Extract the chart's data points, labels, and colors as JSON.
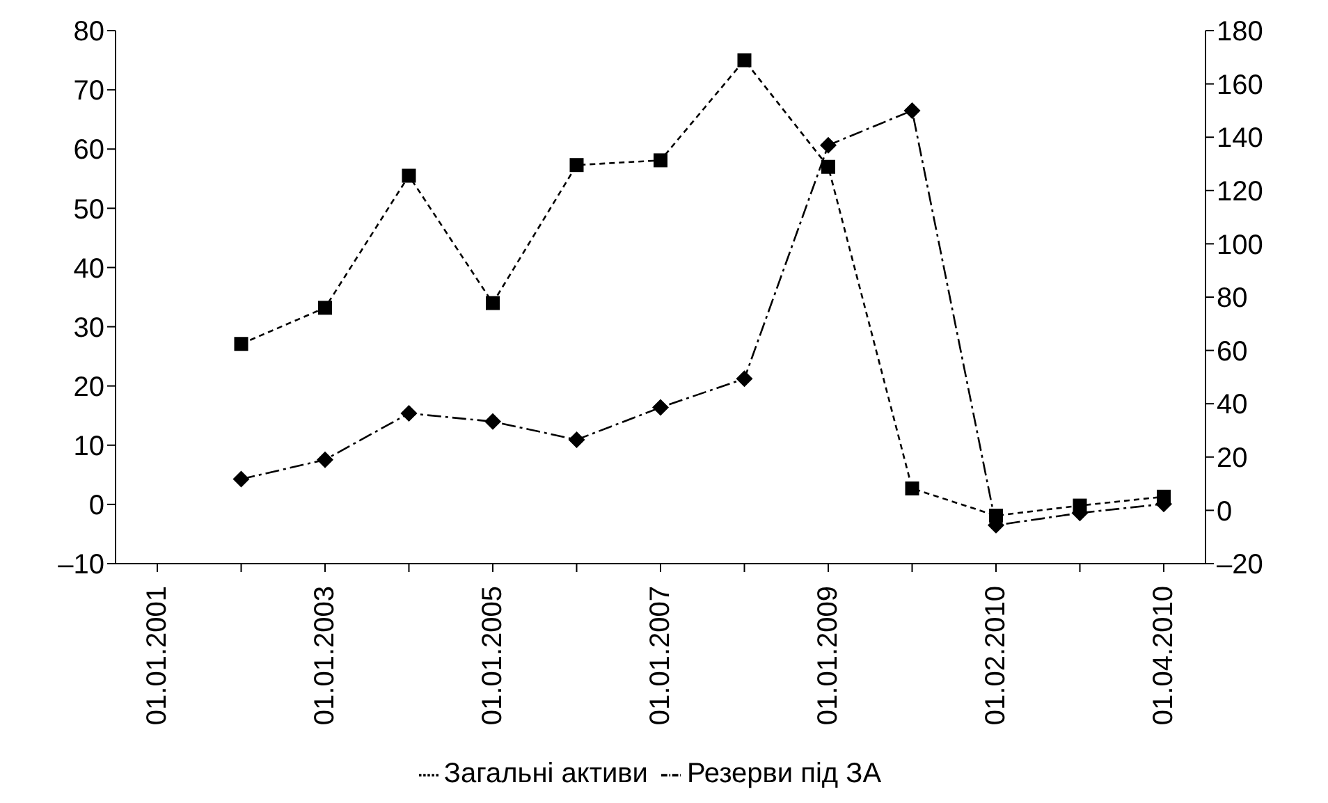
{
  "chart_data": {
    "type": "line",
    "categories": [
      "01.01.2001",
      null,
      "01.01.2003",
      null,
      "01.01.2005",
      null,
      "01.01.2007",
      null,
      "01.01.2009",
      null,
      "01.02.2010",
      null,
      "01.04.2010"
    ],
    "series": [
      {
        "name": "Загальні активи",
        "color": "#000000",
        "marker": "square",
        "line_style": "dashed",
        "values": [
          null,
          27.1,
          33.2,
          55.5,
          34,
          57.3,
          58.1,
          75,
          57,
          2.7,
          -1.9,
          -0.2,
          1.3
        ]
      },
      {
        "name": "Резерви під ЗА",
        "color": "#000000",
        "marker": "diamond",
        "line_style": "dashdot",
        "axis": "y2",
        "values": [
          null,
          11.7,
          19,
          36.4,
          33.3,
          26.5,
          38.6,
          49.4,
          137,
          150,
          -5.6,
          -1,
          2.4
        ]
      }
    ],
    "ylim": [
      -10,
      80
    ],
    "yticks": [
      {
        "value": -10,
        "label": "–10"
      },
      0,
      10,
      20,
      30,
      40,
      50,
      60,
      70,
      80
    ],
    "y2lim": [
      -20,
      180
    ],
    "y2ticks": [
      {
        "value": -20,
        "label": "–20"
      },
      0,
      20,
      40,
      60,
      80,
      100,
      120,
      140,
      160,
      180
    ],
    "legend": "bottom"
  }
}
